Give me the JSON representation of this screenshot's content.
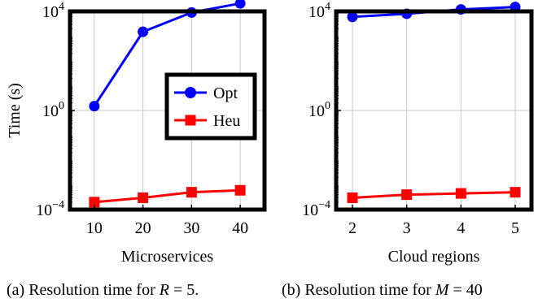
{
  "chart_data": [
    {
      "type": "line",
      "log_y": true,
      "x": [
        10,
        20,
        30,
        40
      ],
      "xlabel": "Microservices",
      "ylabel": "Time (s)",
      "ylim_log10": [
        -4,
        4
      ],
      "xticks": [
        "10",
        "20",
        "30",
        "40"
      ],
      "yticks": [
        {
          "base": "10",
          "exp": "−4"
        },
        {
          "base": "10",
          "exp": "0"
        },
        {
          "base": "10",
          "exp": "4"
        }
      ],
      "grid": true,
      "legend_position": "inside-right",
      "series": [
        {
          "name": "Opt",
          "color": "#0000ff",
          "marker": "circle",
          "values": [
            1.5,
            1500,
            9000,
            21000
          ]
        },
        {
          "name": "Heu",
          "color": "#ff0000",
          "marker": "square",
          "values": [
            0.0002,
            0.0003,
            0.0005,
            0.0006
          ]
        }
      ],
      "caption": {
        "prefix": "(a) Resolution time for ",
        "math": "R",
        "suffix": " = 5."
      }
    },
    {
      "type": "line",
      "log_y": true,
      "x": [
        2,
        3,
        4,
        5
      ],
      "xlabel": "Cloud regions",
      "ylabel": "",
      "ylim_log10": [
        -4,
        4
      ],
      "xticks": [
        "2",
        "3",
        "4",
        "5"
      ],
      "yticks": [
        {
          "base": "10",
          "exp": "−4"
        },
        {
          "base": "10",
          "exp": "0"
        },
        {
          "base": "10",
          "exp": "4"
        }
      ],
      "grid": true,
      "series": [
        {
          "name": "Opt",
          "color": "#0000ff",
          "marker": "circle",
          "values": [
            6000,
            8000,
            12000,
            15000
          ]
        },
        {
          "name": "Heu",
          "color": "#ff0000",
          "marker": "square",
          "values": [
            0.0003,
            0.0004,
            0.00045,
            0.0005
          ]
        }
      ],
      "caption": {
        "prefix": "(b) Resolution time for ",
        "math": "M",
        "suffix": " = 40"
      }
    }
  ]
}
